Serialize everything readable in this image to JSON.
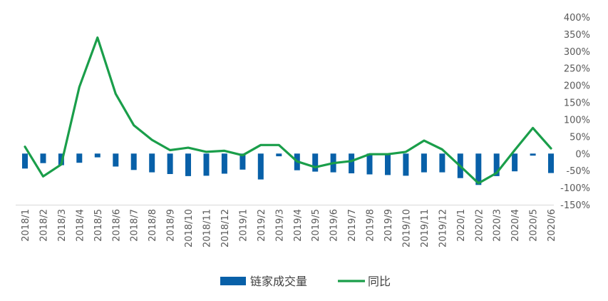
{
  "chart_data": {
    "type": "bar+line",
    "title": "",
    "categories": [
      "2018/1",
      "2018/2",
      "2018/3",
      "2018/4",
      "2018/5",
      "2018/6",
      "2018/7",
      "2018/8",
      "2018/9",
      "2018/10",
      "2018/11",
      "2018/12",
      "2019/1",
      "2019/2",
      "2019/3",
      "2019/4",
      "2019/5",
      "2019/6",
      "2019/7",
      "2019/8",
      "2019/9",
      "2019/10",
      "2019/11",
      "2019/12",
      "2020/1",
      "2020/2",
      "2020/3",
      "2020/4",
      "2020/5",
      "2020/6"
    ],
    "series": [
      {
        "name": "链家成交量",
        "type": "bar",
        "color": "#0860A8",
        "values": [
          -44,
          -28,
          -34,
          -27,
          -11,
          -38,
          -48,
          -55,
          -60,
          -66,
          -65,
          -59,
          -47,
          -76,
          -8,
          -49,
          -53,
          -55,
          -58,
          -61,
          -63,
          -65,
          -55,
          -55,
          -72,
          -92,
          -66,
          -52,
          -6,
          -57
        ]
      },
      {
        "name": "同比",
        "type": "line",
        "color": "#1A9E4A",
        "axis": "right",
        "values": [
          20,
          -67,
          -32,
          195,
          340,
          175,
          83,
          40,
          10,
          17,
          5,
          8,
          -5,
          25,
          25,
          -23,
          -40,
          -28,
          -22,
          -2,
          -2,
          5,
          38,
          12,
          -37,
          -87,
          -57,
          10,
          75,
          15
        ]
      }
    ],
    "y_right": {
      "min": -150,
      "max": 400,
      "step": 50,
      "tick_labels": [
        "400%",
        "350%",
        "300%",
        "250%",
        "200%",
        "150%",
        "100%",
        "50%",
        "0%",
        "-50%",
        "-100%",
        "-150%"
      ]
    },
    "legend_position": "bottom-center",
    "grid": false
  }
}
